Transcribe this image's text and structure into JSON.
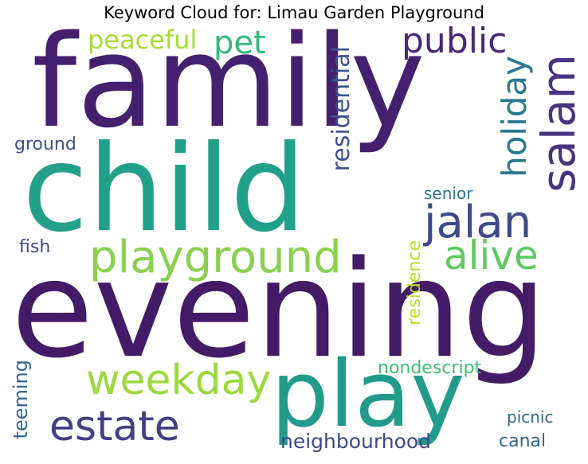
{
  "title": "Keyword Cloud for: Limau Garden Playground",
  "words": {
    "family": {
      "text": "family",
      "color": "#45206e"
    },
    "child": {
      "text": "child",
      "color": "#21a08a"
    },
    "evening": {
      "text": "evening",
      "color": "#431b66"
    },
    "play": {
      "text": "play",
      "color": "#229b8c"
    },
    "playground": {
      "text": "playground",
      "color": "#89d050"
    },
    "weekday": {
      "text": "weekday",
      "color": "#9bd93c"
    },
    "estate": {
      "text": "estate",
      "color": "#433e85"
    },
    "jalan": {
      "text": "jalan",
      "color": "#3e4a89"
    },
    "alive": {
      "text": "alive",
      "color": "#5ec962"
    },
    "salam": {
      "text": "salam",
      "color": "#463480"
    },
    "holiday": {
      "text": "holiday",
      "color": "#29798e"
    },
    "public": {
      "text": "public",
      "color": "#482878"
    },
    "pet": {
      "text": "pet",
      "color": "#35b779"
    },
    "peaceful": {
      "text": "peaceful",
      "color": "#a5db36"
    },
    "residential": {
      "text": "residential",
      "color": "#3b528b"
    },
    "residence": {
      "text": "residence",
      "color": "#b8de29"
    },
    "ground": {
      "text": "ground",
      "color": "#3b528b"
    },
    "senior": {
      "text": "senior",
      "color": "#2c728e"
    },
    "fish": {
      "text": "fish",
      "color": "#3f4788"
    },
    "nondescript": {
      "text": "nondescript",
      "color": "#3fbc73"
    },
    "teeming": {
      "text": "teeming",
      "color": "#33638d"
    },
    "picnic": {
      "text": "picnic",
      "color": "#31688e"
    },
    "canal": {
      "text": "canal",
      "color": "#33638d"
    },
    "neighbourhood": {
      "text": "neighbourhood",
      "color": "#3e4a89"
    }
  }
}
